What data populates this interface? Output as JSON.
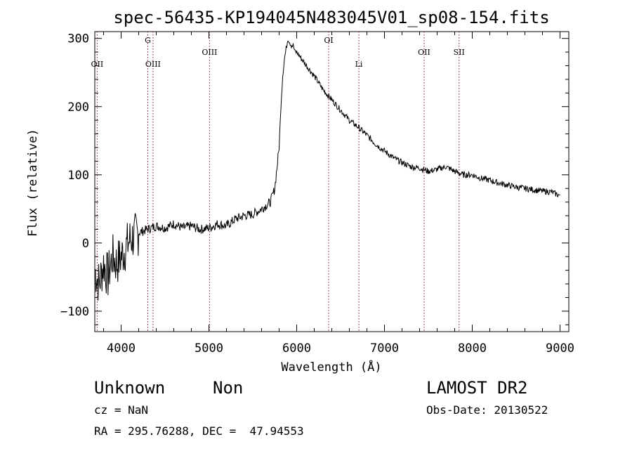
{
  "chart_data": {
    "type": "line",
    "title": "spec-56435-KP194045N483045V01_sp08-154.fits",
    "xlabel": "Wavelength (Å)",
    "ylabel": "Flux (relative)",
    "xlim": [
      3700,
      9100
    ],
    "ylim": [
      -130,
      310
    ],
    "xticks": [
      "4000",
      "5000",
      "6000",
      "7000",
      "8000",
      "9000"
    ],
    "yticks": [
      "−100",
      "0",
      "100",
      "200",
      "300"
    ],
    "grid": false,
    "series": [
      {
        "x": [
          3700,
          3750,
          3800,
          3850,
          3900,
          3950,
          4000,
          4100,
          4200,
          4300,
          4400,
          4500,
          4600,
          4700,
          4800,
          4900,
          5000,
          5100,
          5200,
          5300,
          5400,
          5500,
          5600,
          5700,
          5750,
          5800,
          5820,
          5840,
          5860,
          5880,
          5900,
          5920,
          5940,
          5960,
          5980,
          6000,
          6100,
          6200,
          6300,
          6400,
          6500,
          6600,
          6700,
          6800,
          6900,
          7000,
          7100,
          7200,
          7300,
          7400,
          7500,
          7600,
          7700,
          7800,
          7900,
          8000,
          8100,
          8200,
          8300,
          8400,
          8500,
          8600,
          8700,
          8800,
          8900,
          8950,
          9000
        ],
        "y": [
          -40,
          -60,
          -30,
          -50,
          -20,
          -30,
          -20,
          5,
          15,
          20,
          25,
          22,
          28,
          22,
          25,
          20,
          22,
          28,
          25,
          35,
          40,
          42,
          50,
          60,
          80,
          140,
          200,
          245,
          270,
          285,
          300,
          295,
          290,
          290,
          280,
          280,
          262,
          245,
          225,
          210,
          195,
          180,
          170,
          158,
          145,
          135,
          125,
          118,
          112,
          110,
          105,
          108,
          112,
          105,
          100,
          100,
          95,
          92,
          88,
          85,
          82,
          80,
          78,
          76,
          75,
          72,
          70
        ]
      }
    ],
    "lines": [
      {
        "label": "OII",
        "x": 3727
      },
      {
        "label": "G",
        "x": 4304
      },
      {
        "label": "OIII",
        "x": 4363
      },
      {
        "label": "OIII",
        "x": 5007
      },
      {
        "label": "OI",
        "x": 6364
      },
      {
        "label": "Li",
        "x": 6708
      },
      {
        "label": "OII",
        "x": 7452
      },
      {
        "label": "SII",
        "x": 7850
      }
    ]
  },
  "info": {
    "class_label": "Unknown",
    "subclass_label": "Non",
    "survey": "LAMOST DR2",
    "cz": "cz = NaN",
    "obs_date": "Obs-Date: 20130522",
    "coords": "RA = 295.76288, DEC =  47.94553"
  }
}
